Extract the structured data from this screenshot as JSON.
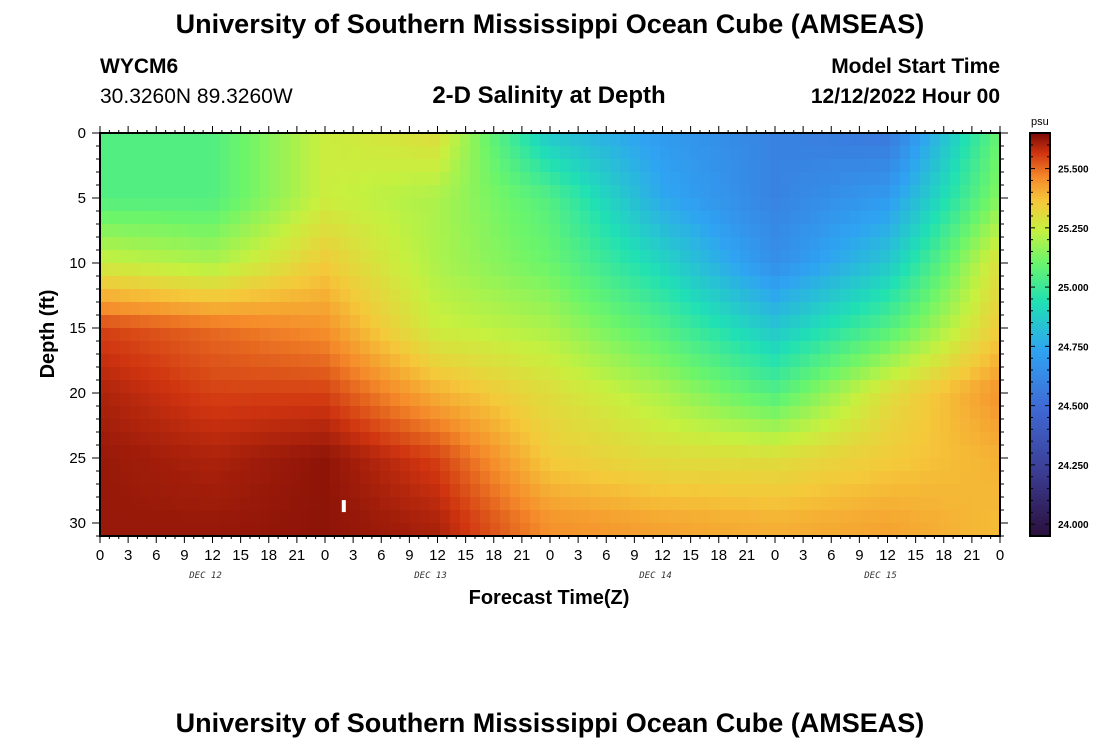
{
  "header": {
    "title": "University of Southern Mississippi Ocean Cube (AMSEAS)",
    "station_id": "WYCM6",
    "station_coords": "30.3260N  89.3260W",
    "subtitle": "2-D Salinity at Depth",
    "model_start_label": "Model Start Time",
    "model_start_value": "12/12/2022 Hour 00"
  },
  "footer": {
    "title": "University of Southern Mississippi Ocean Cube (AMSEAS)"
  },
  "chart_data": {
    "type": "heatmap",
    "title": "2-D Salinity at Depth",
    "xlabel": "Forecast Time(Z)",
    "ylabel": "Depth (ft)",
    "x_hours": [
      0,
      12,
      24,
      36,
      48,
      60,
      72,
      84,
      96
    ],
    "y_depth_ft": [
      0,
      5,
      10,
      15,
      20,
      25,
      30
    ],
    "xlim": [
      0,
      96
    ],
    "ylim": [
      0,
      31
    ],
    "y_inverted": true,
    "x_tick_labels": [
      "0",
      "3",
      "6",
      "9",
      "12",
      "15",
      "18",
      "21",
      "0",
      "3",
      "6",
      "9",
      "12",
      "15",
      "18",
      "21",
      "0",
      "3",
      "6",
      "9",
      "12",
      "15",
      "18",
      "21",
      "0",
      "3",
      "6",
      "9",
      "12",
      "15",
      "18",
      "21",
      "0"
    ],
    "y_tick_labels": [
      "0",
      "5",
      "10",
      "15",
      "20",
      "25",
      "30"
    ],
    "day_labels": [
      "DEC 12",
      "DEC 13",
      "DEC 14",
      "DEC 15"
    ],
    "values_psu": [
      [
        25.05,
        25.05,
        25.25,
        25.3,
        24.85,
        24.7,
        24.6,
        24.55,
        25.1
      ],
      [
        25.05,
        25.05,
        25.25,
        25.2,
        25.05,
        24.75,
        24.6,
        24.7,
        25.15
      ],
      [
        25.25,
        25.2,
        25.35,
        25.2,
        25.1,
        24.9,
        24.65,
        24.85,
        25.3
      ],
      [
        25.55,
        25.5,
        25.45,
        25.25,
        25.2,
        25.05,
        24.85,
        25.05,
        25.35
      ],
      [
        25.6,
        25.55,
        25.55,
        25.4,
        25.3,
        25.2,
        25.05,
        25.3,
        25.45
      ],
      [
        25.62,
        25.6,
        25.63,
        25.55,
        25.35,
        25.3,
        25.3,
        25.35,
        25.4
      ],
      [
        25.62,
        25.62,
        25.63,
        25.6,
        25.45,
        25.42,
        25.4,
        25.42,
        25.38
      ]
    ],
    "colorbar": {
      "unit": "psu",
      "min": 23.95,
      "max": 25.65,
      "ticks": [
        "25.500",
        "25.250",
        "25.000",
        "24.750",
        "24.500",
        "24.250",
        "24.000"
      ],
      "tick_values": [
        25.5,
        25.25,
        25.0,
        24.75,
        24.5,
        24.25,
        24.0
      ]
    },
    "marker": {
      "hour": 26,
      "depth_ft": 28.7
    }
  }
}
